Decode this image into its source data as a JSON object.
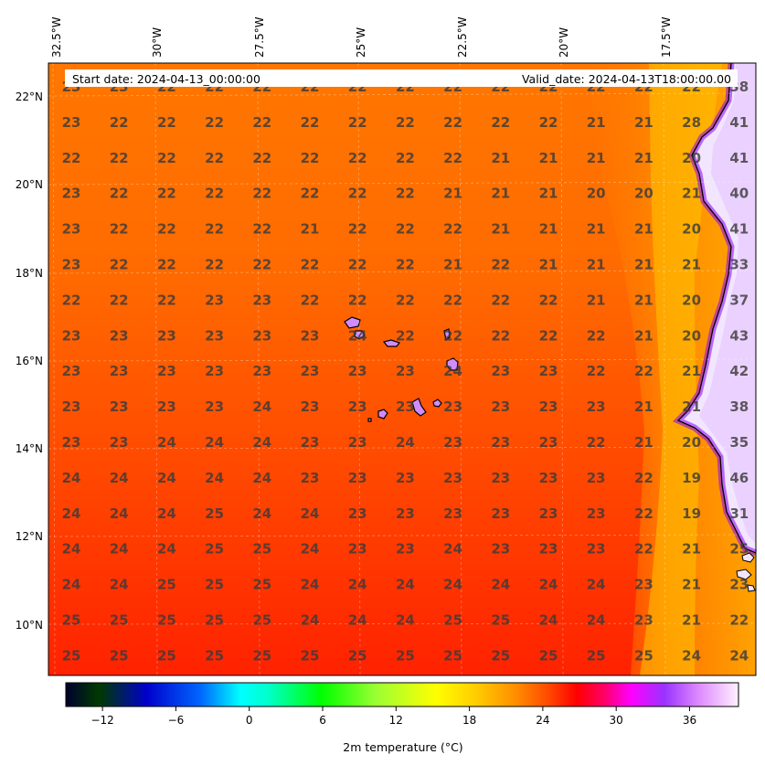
{
  "header": {
    "start_date": "Start date: 2024-04-13_00:00:00",
    "valid_date": "Valid_date: 2024-04-13T18:00:00.00"
  },
  "axes": {
    "lon_labels": [
      "32.5°W",
      "30°W",
      "27.5°W",
      "25°W",
      "22.5°W",
      "20°W",
      "17.5°W"
    ],
    "lat_labels": [
      "22°N",
      "20°N",
      "18°N",
      "16°N",
      "14°N",
      "12°N",
      "10°N"
    ]
  },
  "colorbar": {
    "title": "2m temperature ($^\\circ$C)",
    "title_display": "2m temperature (°C)",
    "ticks": [
      "−12",
      "−6",
      "0",
      "6",
      "12",
      "18",
      "24",
      "30",
      "36"
    ],
    "range": [
      -15,
      40
    ],
    "colors": [
      "#00003a",
      "#0000ff",
      "#00ffff",
      "#00ff00",
      "#ffff00",
      "#ffa500",
      "#ff0000",
      "#ff00ff",
      "#9933ff",
      "#ffffff"
    ]
  },
  "grid_values": [
    [
      "23",
      "23",
      "22",
      "22",
      "22",
      "22",
      "22",
      "22",
      "22",
      "22",
      "22",
      "22",
      "22",
      "22",
      "38"
    ],
    [
      "23",
      "22",
      "22",
      "22",
      "22",
      "22",
      "22",
      "22",
      "22",
      "22",
      "22",
      "21",
      "21",
      "28",
      "41"
    ],
    [
      "22",
      "22",
      "22",
      "22",
      "22",
      "22",
      "22",
      "22",
      "22",
      "21",
      "21",
      "21",
      "21",
      "20",
      "41"
    ],
    [
      "23",
      "22",
      "22",
      "22",
      "22",
      "22",
      "22",
      "22",
      "21",
      "21",
      "21",
      "20",
      "20",
      "21",
      "40"
    ],
    [
      "23",
      "22",
      "22",
      "22",
      "22",
      "21",
      "22",
      "22",
      "22",
      "21",
      "21",
      "21",
      "21",
      "20",
      "41"
    ],
    [
      "23",
      "22",
      "22",
      "22",
      "22",
      "22",
      "22",
      "22",
      "21",
      "22",
      "21",
      "21",
      "21",
      "21",
      "33"
    ],
    [
      "22",
      "22",
      "22",
      "23",
      "23",
      "22",
      "22",
      "22",
      "22",
      "22",
      "22",
      "21",
      "21",
      "20",
      "37"
    ],
    [
      "23",
      "23",
      "23",
      "23",
      "23",
      "23",
      "24",
      "22",
      "22",
      "22",
      "22",
      "22",
      "21",
      "20",
      "43"
    ],
    [
      "23",
      "23",
      "23",
      "23",
      "23",
      "23",
      "23",
      "23",
      "24",
      "23",
      "23",
      "22",
      "22",
      "21",
      "42"
    ],
    [
      "23",
      "23",
      "23",
      "23",
      "24",
      "23",
      "23",
      "23",
      "23",
      "23",
      "23",
      "23",
      "21",
      "21",
      "38"
    ],
    [
      "23",
      "23",
      "24",
      "24",
      "24",
      "23",
      "23",
      "24",
      "23",
      "23",
      "23",
      "22",
      "21",
      "20",
      "35"
    ],
    [
      "24",
      "24",
      "24",
      "24",
      "24",
      "23",
      "23",
      "23",
      "23",
      "23",
      "23",
      "23",
      "22",
      "19",
      "46"
    ],
    [
      "24",
      "24",
      "24",
      "25",
      "24",
      "24",
      "23",
      "23",
      "23",
      "23",
      "23",
      "23",
      "22",
      "19",
      "31"
    ],
    [
      "24",
      "24",
      "24",
      "25",
      "25",
      "24",
      "23",
      "23",
      "24",
      "23",
      "23",
      "23",
      "22",
      "21",
      "25"
    ],
    [
      "24",
      "24",
      "25",
      "25",
      "25",
      "24",
      "24",
      "24",
      "24",
      "24",
      "24",
      "24",
      "23",
      "21",
      "23"
    ],
    [
      "25",
      "25",
      "25",
      "25",
      "25",
      "24",
      "24",
      "24",
      "25",
      "25",
      "24",
      "24",
      "23",
      "21",
      "22"
    ],
    [
      "25",
      "25",
      "25",
      "25",
      "25",
      "25",
      "25",
      "25",
      "25",
      "25",
      "25",
      "25",
      "25",
      "24",
      "24"
    ]
  ]
}
